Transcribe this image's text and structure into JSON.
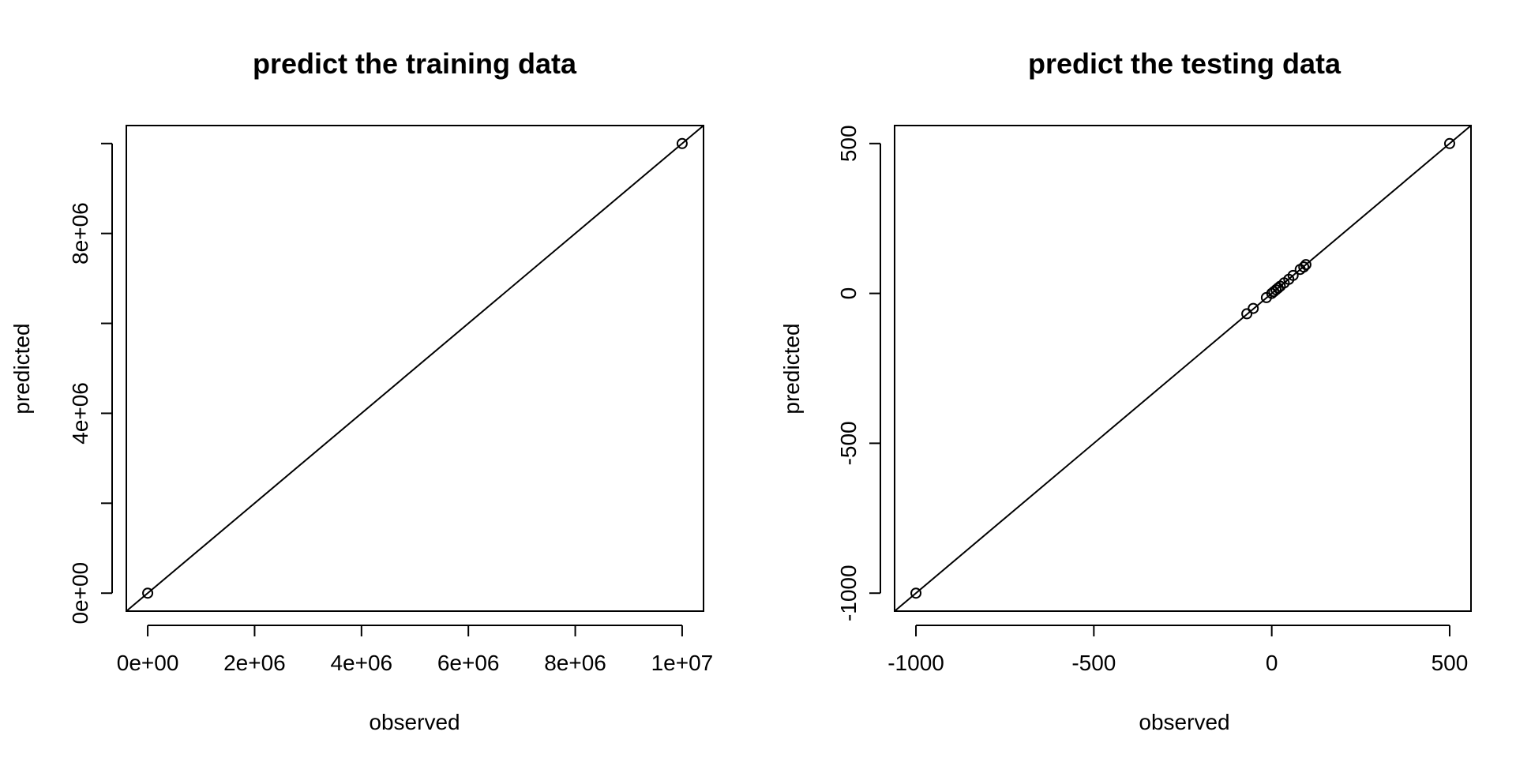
{
  "chart_data": [
    {
      "type": "scatter",
      "title": "predict the training data",
      "xlabel": "observed",
      "ylabel": "predicted",
      "xlim": [
        -400000,
        10400000
      ],
      "ylim": [
        -400000,
        10400000
      ],
      "x_ticks": [
        0,
        2000000,
        4000000,
        6000000,
        8000000,
        10000000
      ],
      "x_tick_labels": [
        "0e+00",
        "2e+06",
        "4e+06",
        "6e+06",
        "8e+06",
        "1e+07"
      ],
      "y_ticks": [
        0,
        2000000,
        4000000,
        6000000,
        8000000,
        10000000
      ],
      "y_tick_labels": [
        "0e+00",
        "",
        "4e+06",
        "",
        "8e+06",
        ""
      ],
      "reference_line": "y = x",
      "grid": false,
      "points": [
        {
          "x": 0,
          "y": 0
        },
        {
          "x": 10000000,
          "y": 10000000
        }
      ]
    },
    {
      "type": "scatter",
      "title": "predict the testing data",
      "xlabel": "observed",
      "ylabel": "predicted",
      "xlim": [
        -1060,
        560
      ],
      "ylim": [
        -1060,
        560
      ],
      "x_ticks": [
        -1000,
        -500,
        0,
        500
      ],
      "x_tick_labels": [
        "-1000",
        "-500",
        "0",
        "500"
      ],
      "y_ticks": [
        -1000,
        -500,
        0,
        500
      ],
      "y_tick_labels": [
        "-1000",
        "-500",
        "0",
        "500"
      ],
      "reference_line": "y = x",
      "grid": false,
      "points": [
        {
          "x": -1000,
          "y": -1000
        },
        {
          "x": -70,
          "y": -68
        },
        {
          "x": -52,
          "y": -50
        },
        {
          "x": -15,
          "y": -14
        },
        {
          "x": 0,
          "y": 0
        },
        {
          "x": 6,
          "y": 6
        },
        {
          "x": 12,
          "y": 12
        },
        {
          "x": 18,
          "y": 18
        },
        {
          "x": 24,
          "y": 24
        },
        {
          "x": 35,
          "y": 35
        },
        {
          "x": 48,
          "y": 47
        },
        {
          "x": 60,
          "y": 60
        },
        {
          "x": 80,
          "y": 80
        },
        {
          "x": 90,
          "y": 88
        },
        {
          "x": 96,
          "y": 96
        },
        {
          "x": 500,
          "y": 500
        }
      ]
    }
  ]
}
